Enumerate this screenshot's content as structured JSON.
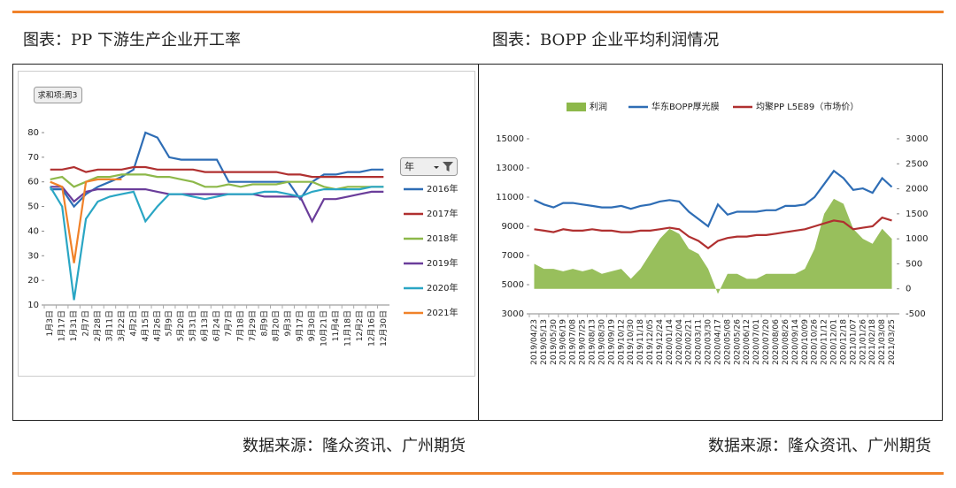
{
  "chart_data": [
    {
      "type": "line",
      "title": "图表：PP 下游生产企业开工率",
      "button": "求和项:周3",
      "legend_title": "年",
      "source": "数据来源：隆众资讯、广州期货",
      "categories": [
        "1月3日",
        "1月17日",
        "1月31日",
        "2月7日",
        "2月28日",
        "3月11日",
        "3月22日",
        "4月2日",
        "4月15日",
        "4月26日",
        "5月9日",
        "5月20日",
        "5月31日",
        "6月13日",
        "6月24日",
        "7月7日",
        "7月18日",
        "7月29日",
        "8月9日",
        "8月20日",
        "9月3日",
        "9月17日",
        "9月30日",
        "10月21日",
        "11月4日",
        "11月18日",
        "12月2日",
        "12月16日",
        "12月30日"
      ],
      "ylim": [
        10,
        80
      ],
      "yticks": [
        10,
        20,
        30,
        40,
        50,
        60,
        70,
        80
      ],
      "legend": "right",
      "series": [
        {
          "name": "2016年",
          "color": "#2e6db5",
          "values": [
            57,
            57,
            50,
            55,
            58,
            60,
            62,
            65,
            80,
            78,
            70,
            69,
            69,
            69,
            69,
            60,
            60,
            60,
            60,
            60,
            60,
            53,
            60,
            63,
            63,
            64,
            64,
            65,
            65
          ]
        },
        {
          "name": "2017年",
          "color": "#b03030",
          "values": [
            65,
            65,
            66,
            64,
            65,
            65,
            65,
            66,
            66,
            65,
            65,
            65,
            65,
            64,
            64,
            64,
            64,
            64,
            64,
            64,
            63,
            63,
            62,
            62,
            62,
            62,
            62,
            62,
            62
          ]
        },
        {
          "name": "2018年",
          "color": "#8db84a",
          "values": [
            61,
            62,
            58,
            60,
            62,
            62,
            63,
            63,
            63,
            62,
            62,
            61,
            60,
            58,
            58,
            59,
            58,
            59,
            59,
            59,
            60,
            60,
            60,
            58,
            57,
            58,
            58,
            58,
            58
          ]
        },
        {
          "name": "2019年",
          "color": "#6a3d9a",
          "values": [
            58,
            58,
            52,
            56,
            57,
            57,
            57,
            57,
            57,
            56,
            55,
            55,
            55,
            55,
            55,
            55,
            55,
            55,
            54,
            54,
            54,
            54,
            44,
            53,
            53,
            54,
            55,
            56,
            56
          ]
        },
        {
          "name": "2020年",
          "color": "#2aa6c4",
          "values": [
            58,
            50,
            12,
            45,
            52,
            54,
            55,
            56,
            44,
            50,
            55,
            55,
            54,
            53,
            54,
            55,
            55,
            55,
            56,
            56,
            55,
            54,
            56,
            57,
            57,
            57,
            57,
            58,
            58
          ]
        },
        {
          "name": "2021年",
          "color": "#f0822a",
          "values": [
            60,
            58,
            27,
            60,
            61,
            61,
            61,
            null,
            null,
            null,
            null,
            null,
            null,
            null,
            null,
            null,
            null,
            null,
            null,
            null,
            null,
            null,
            null,
            null,
            null,
            null,
            null,
            null,
            null
          ]
        }
      ]
    },
    {
      "type": "combo",
      "title": "图表：BOPP 企业平均利润情况",
      "source": "数据来源：隆众资讯、广州期货",
      "categories": [
        "2019/04/23",
        "2019/05/13",
        "2019/05/30",
        "2019/06/19",
        "2019/07/08",
        "2019/07/25",
        "2019/08/13",
        "2019/08/30",
        "2019/09/19",
        "2019/10/12",
        "2019/10/30",
        "2019/11/18",
        "2019/12/05",
        "2019/12/24",
        "2020/01/14",
        "2020/02/04",
        "2020/02/21",
        "2020/03/11",
        "2020/03/30",
        "2020/04/17",
        "2020/05/08",
        "2020/05/26",
        "2020/06/12",
        "2020/07/01",
        "2020/07/20",
        "2020/08/06",
        "2020/08/26",
        "2020/09/14",
        "2020/10/09",
        "2020/10/26",
        "2020/11/12",
        "2020/12/01",
        "2020/12/18",
        "2021/01/07",
        "2021/01/26",
        "2021/02/18",
        "2021/03/08",
        "2021/03/25"
      ],
      "ylim": [
        3000,
        15000
      ],
      "yticks": [
        3000,
        5000,
        7000,
        9000,
        11000,
        13000,
        15000
      ],
      "y2lim": [
        -500,
        3000
      ],
      "y2ticks": [
        -500,
        0,
        500,
        1000,
        1500,
        2000,
        2500,
        3000
      ],
      "legend": "top",
      "series": [
        {
          "name": "利润",
          "type": "area",
          "axis": "y2",
          "color": "#8db84a",
          "values": [
            500,
            400,
            400,
            350,
            400,
            350,
            400,
            300,
            350,
            400,
            200,
            400,
            700,
            1000,
            1200,
            1100,
            800,
            700,
            400,
            -100,
            300,
            300,
            200,
            200,
            300,
            300,
            300,
            300,
            400,
            800,
            1500,
            1800,
            1700,
            1200,
            1000,
            900,
            1200,
            1000
          ]
        },
        {
          "name": "华东BOPP厚光膜",
          "type": "line",
          "color": "#2e6db5",
          "values": [
            10800,
            10500,
            10300,
            10600,
            10600,
            10500,
            10400,
            10300,
            10300,
            10400,
            10200,
            10400,
            10500,
            10700,
            10800,
            10700,
            10000,
            9500,
            9000,
            10500,
            9800,
            10000,
            10000,
            10000,
            10100,
            10100,
            10400,
            10400,
            10500,
            11000,
            11900,
            12800,
            12300,
            11500,
            11600,
            11300,
            12300,
            11700
          ]
        },
        {
          "name": "均聚PP L5E89（市场价）",
          "type": "line",
          "color": "#b03030",
          "values": [
            8800,
            8700,
            8600,
            8800,
            8700,
            8700,
            8800,
            8700,
            8700,
            8600,
            8600,
            8700,
            8700,
            8800,
            8900,
            8800,
            8300,
            8000,
            7500,
            8000,
            8200,
            8300,
            8300,
            8400,
            8400,
            8500,
            8600,
            8700,
            8800,
            9000,
            9200,
            9400,
            9300,
            8800,
            8900,
            9000,
            9600,
            9400
          ]
        }
      ]
    }
  ]
}
